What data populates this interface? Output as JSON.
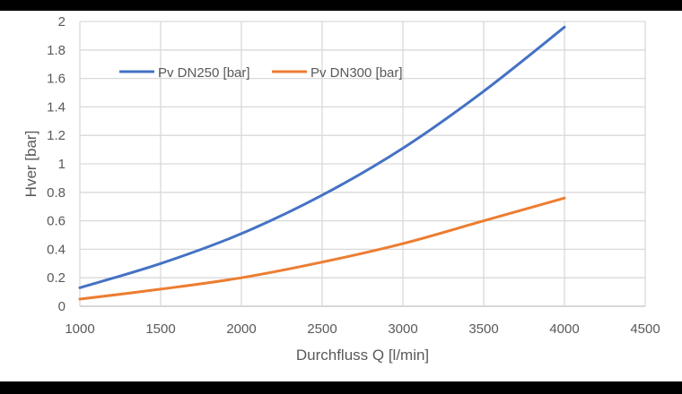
{
  "chart_data": {
    "type": "line",
    "title": "",
    "xlabel": "Durchfluss Q [l/min]",
    "ylabel": "Hver [bar]",
    "xlim": [
      1000,
      4500
    ],
    "ylim": [
      0,
      2
    ],
    "x_ticks": [
      "1000",
      "1500",
      "2000",
      "2500",
      "3000",
      "3500",
      "4000",
      "4500"
    ],
    "y_ticks": [
      "0",
      "0.2",
      "0.4",
      "0.6",
      "0.8",
      "1",
      "1.2",
      "1.4",
      "1.6",
      "1.8",
      "2"
    ],
    "grid": true,
    "legend_position": "top-left inside plot",
    "x": [
      1000,
      1500,
      2000,
      2500,
      3000,
      3500,
      4000
    ],
    "series": [
      {
        "name": "Pv DN250 [bar]",
        "color": "#4472C4",
        "values": [
          0.13,
          0.3,
          0.51,
          0.78,
          1.11,
          1.51,
          1.96
        ]
      },
      {
        "name": "Pv DN300 [bar]",
        "color": "#ED7D31",
        "values": [
          0.05,
          0.12,
          0.2,
          0.31,
          0.44,
          0.6,
          0.76
        ]
      }
    ]
  },
  "legend": {
    "items": [
      {
        "label": "Pv DN250 [bar]",
        "color": "#4472C4"
      },
      {
        "label": "Pv DN300 [bar]",
        "color": "#ED7D31"
      }
    ]
  },
  "axes": {
    "x_title": "Durchfluss Q [l/min]",
    "y_title": "Hver [bar]"
  },
  "colors": {
    "grid": "#d9d9d9",
    "axis_text": "#595959",
    "background": "#ffffff",
    "frame": "#000000"
  }
}
